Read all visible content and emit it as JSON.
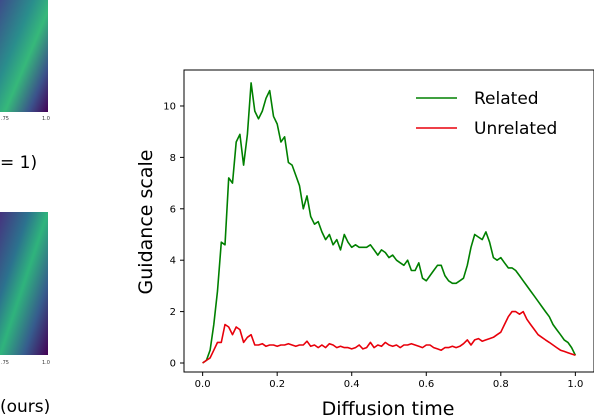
{
  "side_panels": {
    "top_tick_label": "1.0",
    "top_tick_left": ".75",
    "top_caption": "= 1)",
    "bottom_tick_label": "1.0",
    "bottom_tick_left": ".75",
    "bottom_caption": "(ours)"
  },
  "chart_data": {
    "type": "line",
    "xlabel": "Diffusion time",
    "ylabel": "Guidance scale",
    "xlim": [
      -0.05,
      1.05
    ],
    "ylim": [
      -0.35,
      11.4
    ],
    "xticks": [
      0.0,
      0.2,
      0.4,
      0.6,
      0.8,
      1.0
    ],
    "xtick_labels": [
      "0.0",
      "0.2",
      "0.4",
      "0.6",
      "0.8",
      "1.0"
    ],
    "yticks": [
      0,
      2,
      4,
      6,
      8,
      10
    ],
    "ytick_labels": [
      "0",
      "2",
      "4",
      "6",
      "8",
      "10"
    ],
    "grid": false,
    "legend_position": "top-right",
    "series": [
      {
        "name": "Related",
        "color": "#008000",
        "x": [
          0.0,
          0.01,
          0.02,
          0.03,
          0.04,
          0.05,
          0.06,
          0.07,
          0.08,
          0.09,
          0.1,
          0.11,
          0.12,
          0.13,
          0.14,
          0.15,
          0.16,
          0.17,
          0.18,
          0.19,
          0.2,
          0.21,
          0.22,
          0.23,
          0.24,
          0.25,
          0.26,
          0.27,
          0.28,
          0.29,
          0.3,
          0.31,
          0.32,
          0.33,
          0.34,
          0.35,
          0.36,
          0.37,
          0.38,
          0.39,
          0.4,
          0.41,
          0.42,
          0.43,
          0.44,
          0.45,
          0.46,
          0.47,
          0.48,
          0.49,
          0.5,
          0.51,
          0.52,
          0.53,
          0.54,
          0.55,
          0.56,
          0.57,
          0.58,
          0.59,
          0.6,
          0.61,
          0.62,
          0.63,
          0.64,
          0.65,
          0.66,
          0.67,
          0.68,
          0.69,
          0.7,
          0.71,
          0.72,
          0.73,
          0.74,
          0.75,
          0.76,
          0.77,
          0.78,
          0.79,
          0.8,
          0.81,
          0.82,
          0.83,
          0.84,
          0.85,
          0.86,
          0.87,
          0.88,
          0.89,
          0.9,
          0.91,
          0.92,
          0.93,
          0.94,
          0.95,
          0.96,
          0.97,
          0.98,
          0.99,
          1.0
        ],
        "y": [
          0.0,
          0.1,
          0.5,
          1.5,
          2.8,
          4.7,
          4.6,
          7.2,
          7.0,
          8.6,
          8.9,
          7.7,
          8.9,
          10.9,
          9.8,
          9.5,
          9.8,
          10.3,
          10.6,
          9.6,
          9.3,
          8.6,
          8.8,
          7.8,
          7.7,
          7.3,
          6.9,
          6.0,
          6.5,
          5.7,
          5.4,
          5.5,
          5.1,
          4.8,
          5.0,
          4.6,
          4.8,
          4.4,
          5.0,
          4.7,
          4.5,
          4.6,
          4.5,
          4.5,
          4.5,
          4.6,
          4.4,
          4.2,
          4.4,
          4.3,
          4.1,
          4.2,
          4.0,
          3.9,
          3.8,
          4.0,
          3.6,
          3.6,
          3.9,
          3.3,
          3.2,
          3.4,
          3.6,
          3.8,
          3.8,
          3.4,
          3.2,
          3.1,
          3.1,
          3.2,
          3.3,
          3.8,
          4.5,
          5.0,
          4.9,
          4.8,
          5.1,
          4.7,
          4.1,
          4.0,
          4.1,
          3.9,
          3.7,
          3.7,
          3.6,
          3.4,
          3.2,
          3.0,
          2.8,
          2.6,
          2.4,
          2.2,
          2.0,
          1.8,
          1.5,
          1.3,
          1.1,
          0.9,
          0.8,
          0.6,
          0.3
        ]
      },
      {
        "name": "Unrelated",
        "color": "#e8000b",
        "x": [
          0.0,
          0.01,
          0.02,
          0.03,
          0.04,
          0.05,
          0.06,
          0.07,
          0.08,
          0.09,
          0.1,
          0.11,
          0.12,
          0.13,
          0.14,
          0.15,
          0.16,
          0.17,
          0.18,
          0.19,
          0.2,
          0.21,
          0.22,
          0.23,
          0.24,
          0.25,
          0.26,
          0.27,
          0.28,
          0.29,
          0.3,
          0.31,
          0.32,
          0.33,
          0.34,
          0.35,
          0.36,
          0.37,
          0.38,
          0.39,
          0.4,
          0.41,
          0.42,
          0.43,
          0.44,
          0.45,
          0.46,
          0.47,
          0.48,
          0.49,
          0.5,
          0.51,
          0.52,
          0.53,
          0.54,
          0.55,
          0.56,
          0.57,
          0.58,
          0.59,
          0.6,
          0.61,
          0.62,
          0.63,
          0.64,
          0.65,
          0.66,
          0.67,
          0.68,
          0.69,
          0.7,
          0.71,
          0.72,
          0.73,
          0.74,
          0.75,
          0.76,
          0.77,
          0.78,
          0.79,
          0.8,
          0.81,
          0.82,
          0.83,
          0.84,
          0.85,
          0.86,
          0.87,
          0.88,
          0.89,
          0.9,
          0.91,
          0.92,
          0.93,
          0.94,
          0.95,
          0.96,
          0.97,
          0.98,
          0.99,
          1.0
        ],
        "y": [
          0.0,
          0.1,
          0.2,
          0.5,
          0.8,
          0.8,
          1.5,
          1.4,
          1.1,
          1.4,
          1.3,
          0.8,
          1.0,
          1.1,
          0.7,
          0.7,
          0.75,
          0.65,
          0.7,
          0.7,
          0.65,
          0.7,
          0.7,
          0.75,
          0.7,
          0.65,
          0.7,
          0.7,
          0.85,
          0.65,
          0.7,
          0.6,
          0.7,
          0.6,
          0.75,
          0.7,
          0.6,
          0.65,
          0.6,
          0.6,
          0.55,
          0.6,
          0.7,
          0.55,
          0.6,
          0.8,
          0.6,
          0.7,
          0.65,
          0.8,
          0.7,
          0.65,
          0.7,
          0.6,
          0.7,
          0.7,
          0.75,
          0.7,
          0.65,
          0.6,
          0.7,
          0.7,
          0.6,
          0.55,
          0.5,
          0.6,
          0.6,
          0.65,
          0.6,
          0.65,
          0.75,
          0.9,
          0.7,
          0.9,
          0.95,
          0.85,
          0.9,
          0.95,
          1.0,
          1.1,
          1.2,
          1.5,
          1.8,
          2.0,
          2.0,
          1.9,
          2.0,
          1.7,
          1.5,
          1.3,
          1.1,
          1.0,
          0.9,
          0.8,
          0.7,
          0.6,
          0.5,
          0.45,
          0.4,
          0.35,
          0.3
        ]
      }
    ]
  }
}
